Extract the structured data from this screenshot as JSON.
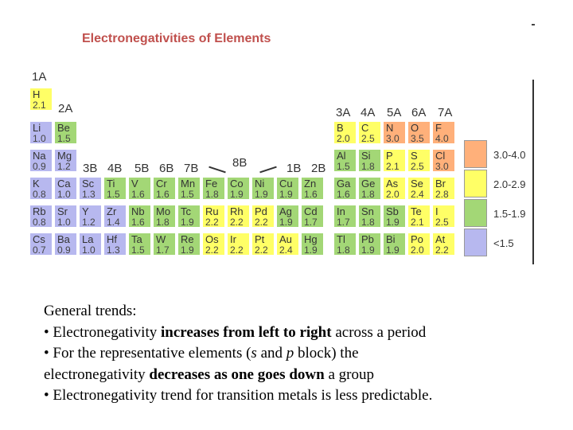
{
  "title": "Electronegativities of Elements",
  "group_headers": {
    "g1a": "1A",
    "g2a": "2A",
    "g3b": "3B",
    "g4b": "4B",
    "g5b": "5B",
    "g6b": "6B",
    "g7b": "7B",
    "g8b": "8B",
    "g1b": "1B",
    "g2b": "2B",
    "g3a": "3A",
    "g4a": "4A",
    "g5a": "5A",
    "g6a": "6A",
    "g7a": "7A"
  },
  "elements": {
    "H": {
      "sym": "H",
      "en": "2.1"
    },
    "Li": {
      "sym": "Li",
      "en": "1.0"
    },
    "Be": {
      "sym": "Be",
      "en": "1.5"
    },
    "Na": {
      "sym": "Na",
      "en": "0.9"
    },
    "Mg": {
      "sym": "Mg",
      "en": "1.2"
    },
    "K": {
      "sym": "K",
      "en": "0.8"
    },
    "Ca": {
      "sym": "Ca",
      "en": "1.0"
    },
    "Rb": {
      "sym": "Rb",
      "en": "0.8"
    },
    "Sr": {
      "sym": "Sr",
      "en": "1.0"
    },
    "Cs": {
      "sym": "Cs",
      "en": "0.7"
    },
    "Ba": {
      "sym": "Ba",
      "en": "0.9"
    },
    "Sc": {
      "sym": "Sc",
      "en": "1.3"
    },
    "Ti": {
      "sym": "Ti",
      "en": "1.5"
    },
    "V": {
      "sym": "V",
      "en": "1.6"
    },
    "Cr": {
      "sym": "Cr",
      "en": "1.6"
    },
    "Mn": {
      "sym": "Mn",
      "en": "1.5"
    },
    "Fe": {
      "sym": "Fe",
      "en": "1.8"
    },
    "Co": {
      "sym": "Co",
      "en": "1.9"
    },
    "Ni": {
      "sym": "Ni",
      "en": "1.9"
    },
    "Cu": {
      "sym": "Cu",
      "en": "1.9"
    },
    "Zn": {
      "sym": "Zn",
      "en": "1.6"
    },
    "Y": {
      "sym": "Y",
      "en": "1.2"
    },
    "Zr": {
      "sym": "Zr",
      "en": "1.4"
    },
    "Nb": {
      "sym": "Nb",
      "en": "1.6"
    },
    "Mo": {
      "sym": "Mo",
      "en": "1.8"
    },
    "Tc": {
      "sym": "Tc",
      "en": "1.9"
    },
    "Ru": {
      "sym": "Ru",
      "en": "2.2"
    },
    "Rh": {
      "sym": "Rh",
      "en": "2.2"
    },
    "Pd": {
      "sym": "Pd",
      "en": "2.2"
    },
    "Ag": {
      "sym": "Ag",
      "en": "1.9"
    },
    "Cd": {
      "sym": "Cd",
      "en": "1.7"
    },
    "La": {
      "sym": "La",
      "en": "1.0"
    },
    "Hf": {
      "sym": "Hf",
      "en": "1.3"
    },
    "Ta": {
      "sym": "Ta",
      "en": "1.5"
    },
    "W": {
      "sym": "W",
      "en": "1.7"
    },
    "Re": {
      "sym": "Re",
      "en": "1.9"
    },
    "Os": {
      "sym": "Os",
      "en": "2.2"
    },
    "Ir": {
      "sym": "Ir",
      "en": "2.2"
    },
    "Pt": {
      "sym": "Pt",
      "en": "2.2"
    },
    "Au": {
      "sym": "Au",
      "en": "2.4"
    },
    "Hg": {
      "sym": "Hg",
      "en": "1.9"
    },
    "B": {
      "sym": "B",
      "en": "2.0"
    },
    "C": {
      "sym": "C",
      "en": "2.5"
    },
    "N": {
      "sym": "N",
      "en": "3.0"
    },
    "O": {
      "sym": "O",
      "en": "3.5"
    },
    "F": {
      "sym": "F",
      "en": "4.0"
    },
    "Al": {
      "sym": "Al",
      "en": "1.5"
    },
    "Si": {
      "sym": "Si",
      "en": "1.8"
    },
    "P": {
      "sym": "P",
      "en": "2.1"
    },
    "S": {
      "sym": "S",
      "en": "2.5"
    },
    "Cl": {
      "sym": "Cl",
      "en": "3.0"
    },
    "Ga": {
      "sym": "Ga",
      "en": "1.6"
    },
    "Ge": {
      "sym": "Ge",
      "en": "1.8"
    },
    "As": {
      "sym": "As",
      "en": "2.0"
    },
    "Se": {
      "sym": "Se",
      "en": "2.4"
    },
    "Br": {
      "sym": "Br",
      "en": "2.8"
    },
    "In": {
      "sym": "In",
      "en": "1.7"
    },
    "Sn": {
      "sym": "Sn",
      "en": "1.8"
    },
    "Sb": {
      "sym": "Sb",
      "en": "1.9"
    },
    "Te": {
      "sym": "Te",
      "en": "2.1"
    },
    "I": {
      "sym": "I",
      "en": "2.5"
    },
    "Tl": {
      "sym": "Tl",
      "en": "1.8"
    },
    "Pb": {
      "sym": "Pb",
      "en": "1.9"
    },
    "Bi": {
      "sym": "Bi",
      "en": "1.9"
    },
    "Po": {
      "sym": "Po",
      "en": "2.0"
    },
    "At": {
      "sym": "At",
      "en": "2.2"
    }
  },
  "legend": [
    {
      "label": "3.0-4.0",
      "color": "#ffb07a"
    },
    {
      "label": "2.0-2.9",
      "color": "#ffff66"
    },
    {
      "label": "1.5-1.9",
      "color": "#a3d776"
    },
    {
      "label": "<1.5",
      "color": "#b7b8ef"
    }
  ],
  "colors": {
    "lt_1_5": "#b7b8ef",
    "r1_5_1_9": "#a3d776",
    "r2_0_2_9": "#ffff66",
    "r3_0_4_0": "#ffb07a",
    "title": "#c0504d"
  },
  "trends": {
    "heading": "General trends:",
    "b1_pre": "• Electronegativity ",
    "b1_bold": "increases from left to right",
    "b1_post": " across a period",
    "b2_pre": "• For the representative elements (",
    "b2_s": "s",
    "b2_and": " and ",
    "b2_p": "p",
    "b2_post": " block) the",
    "b2_line2_pre": "electronegativity ",
    "b2_bold": "decreases as one goes down",
    "b2_line2_post": " a group",
    "b3": "• Electronegativity trend for transition metals is less predictable."
  }
}
